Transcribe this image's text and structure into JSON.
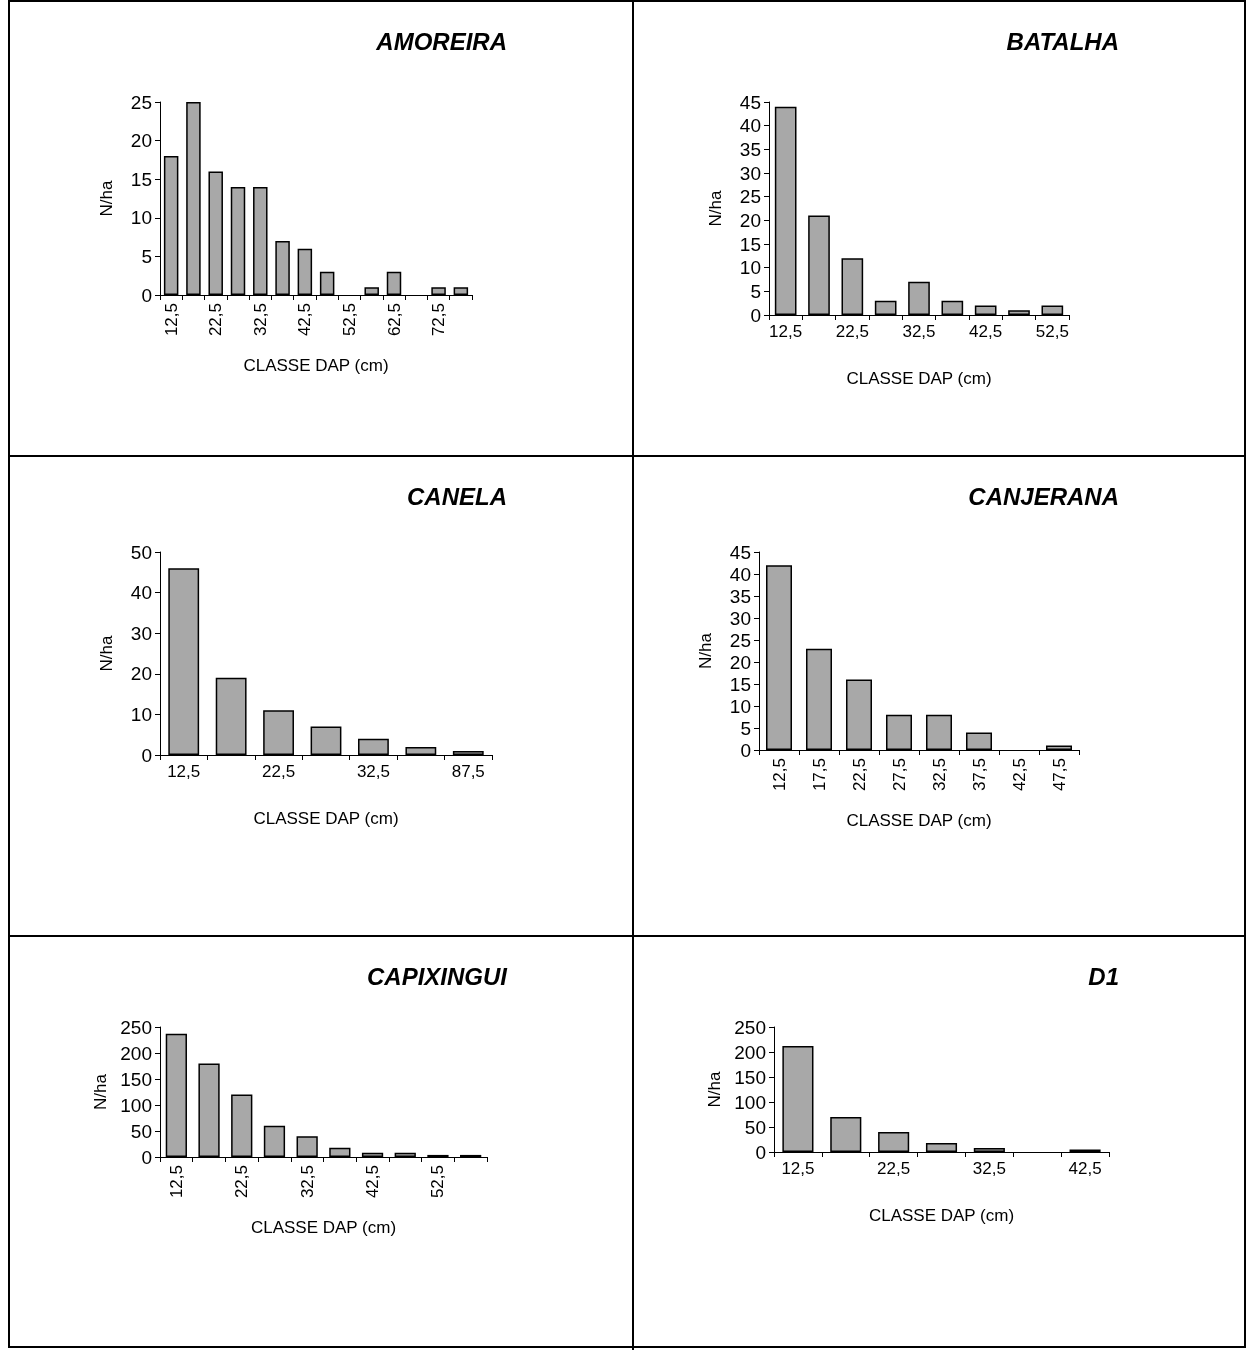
{
  "chart_data": [
    {
      "type": "bar",
      "title": "AMOREIRA",
      "xlabel": "CLASSE DAP (cm)",
      "ylabel": "N/ha",
      "categories": [
        "12,5",
        null,
        "22,5",
        null,
        "32,5",
        null,
        "42,5",
        null,
        "52,5",
        null,
        "62,5",
        null,
        "72,5",
        null
      ],
      "values": [
        18,
        25,
        16,
        14,
        14,
        7,
        6,
        3,
        0,
        1,
        3,
        0,
        1,
        1
      ],
      "color": "#a8a8a8",
      "ylim": [
        0,
        25
      ],
      "yticks": [
        0,
        5,
        10,
        15,
        20,
        25
      ],
      "grid": false
    },
    {
      "type": "bar",
      "title": "BATALHA",
      "xlabel": "CLASSE DAP (cm)",
      "ylabel": "N/ha",
      "categories": [
        "12,5",
        null,
        "22,5",
        null,
        "32,5",
        null,
        "42,5",
        null,
        "52,5"
      ],
      "values": [
        44,
        21,
        12,
        3,
        7,
        3,
        2,
        1,
        2
      ],
      "color": "#a8a8a8",
      "ylim": [
        0,
        45
      ],
      "yticks": [
        0,
        5,
        10,
        15,
        20,
        25,
        30,
        35,
        40,
        45
      ],
      "grid": false
    },
    {
      "type": "bar",
      "title": "CANELA",
      "xlabel": "CLASSE DAP (cm)",
      "ylabel": "N/ha",
      "categories": [
        "12,5",
        null,
        "22,5",
        null,
        "32,5",
        null,
        "87,5"
      ],
      "values": [
        46,
        19,
        11,
        7,
        4,
        2,
        1
      ],
      "color": "#a8a8a8",
      "ylim": [
        0,
        50
      ],
      "yticks": [
        0,
        10,
        20,
        30,
        40,
        50
      ],
      "grid": false
    },
    {
      "type": "bar",
      "title": "CANJERANA",
      "xlabel": "CLASSE DAP (cm)",
      "ylabel": "N/ha",
      "categories": [
        "12,5",
        "17,5",
        "22,5",
        "27,5",
        "32,5",
        "37,5",
        "42,5",
        "47,5"
      ],
      "values": [
        42,
        23,
        16,
        8,
        8,
        4,
        0,
        1
      ],
      "color": "#a8a8a8",
      "ylim": [
        0,
        45
      ],
      "yticks": [
        0,
        5,
        10,
        15,
        20,
        25,
        30,
        35,
        40,
        45
      ],
      "grid": false
    },
    {
      "type": "bar",
      "title": "CAPIXINGUI",
      "xlabel": "CLASSE DAP (cm)",
      "ylabel": "N/ha",
      "categories": [
        "12,5",
        null,
        "22,5",
        null,
        "32,5",
        null,
        "42,5",
        null,
        "52,5",
        null
      ],
      "values": [
        237,
        180,
        120,
        60,
        40,
        18,
        8,
        8,
        4,
        4
      ],
      "color": "#a8a8a8",
      "ylim": [
        0,
        250
      ],
      "yticks": [
        0,
        50,
        100,
        150,
        200,
        250
      ],
      "grid": false
    },
    {
      "type": "bar",
      "title": "D1",
      "xlabel": "CLASSE DAP (cm)",
      "ylabel": "N/ha",
      "categories": [
        "12,5",
        null,
        "22,5",
        null,
        "32,5",
        null,
        "42,5"
      ],
      "values": [
        212,
        70,
        40,
        18,
        8,
        0,
        5
      ],
      "color": "#a8a8a8",
      "ylim": [
        0,
        250
      ],
      "yticks": [
        0,
        50,
        100,
        150,
        200,
        250
      ],
      "grid": false
    }
  ]
}
